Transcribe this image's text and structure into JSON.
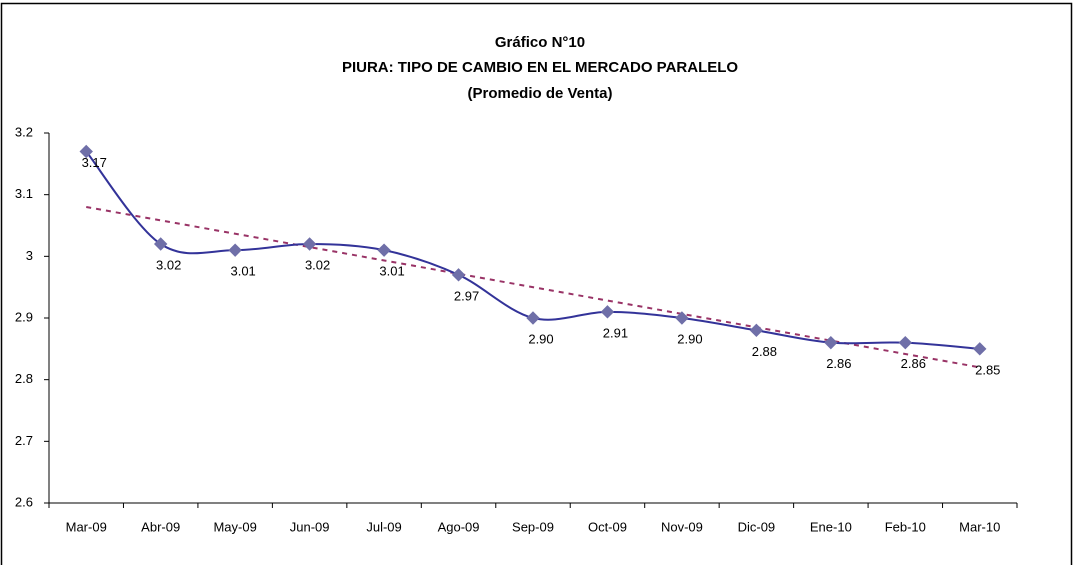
{
  "chart_data": {
    "type": "line",
    "title": "Gráfico N°10",
    "subtitle": "PIURA: TIPO DE CAMBIO EN EL MERCADO PARALELO",
    "note": "(Promedio de Venta)",
    "categories": [
      "Mar-09",
      "Abr-09",
      "May-09",
      "Jun-09",
      "Jul-09",
      "Ago-09",
      "Sep-09",
      "Oct-09",
      "Nov-09",
      "Dic-09",
      "Ene-10",
      "Feb-10",
      "Mar-10"
    ],
    "values": [
      3.17,
      3.02,
      3.01,
      3.02,
      3.01,
      2.97,
      2.9,
      2.91,
      2.9,
      2.88,
      2.86,
      2.86,
      2.85
    ],
    "value_labels": [
      "3.17",
      "3.02",
      "3.01",
      "3.02",
      "3.01",
      "2.97",
      "2.90",
      "2.91",
      "2.90",
      "2.88",
      "2.86",
      "2.86",
      "2.85"
    ],
    "color": "#333399",
    "marker_color": "#6f6fa8",
    "trendline": {
      "start": 3.08,
      "end": 2.82,
      "color": "#993366"
    },
    "ylim": [
      2.6,
      3.2
    ],
    "yticks": [
      2.6,
      2.7,
      2.8,
      2.9,
      3,
      3.1,
      3.2
    ],
    "grid": false
  }
}
